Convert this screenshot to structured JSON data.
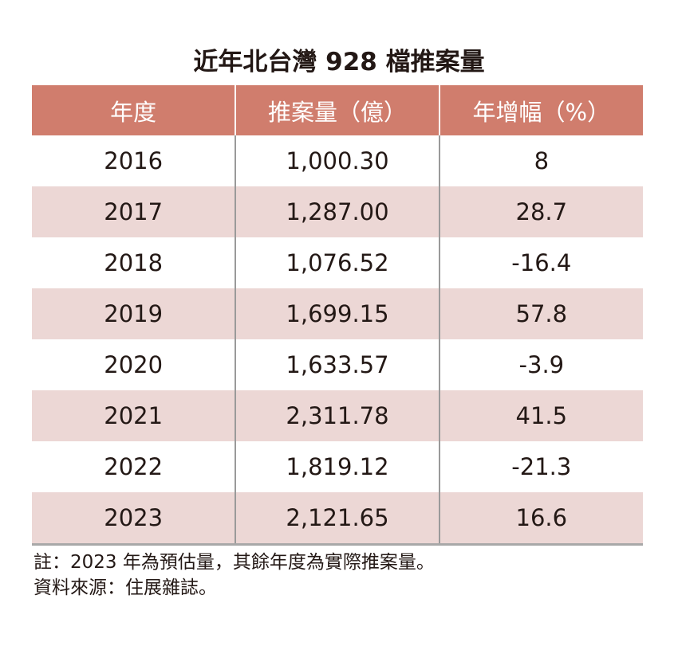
{
  "title": "近年北台灣 928 檔推案量",
  "chart_data": {
    "type": "table",
    "title": "近年北台灣 928 檔推案量",
    "columns": [
      "年度",
      "推案量（億）",
      "年增幅（%）"
    ],
    "rows": [
      [
        "2016",
        "1,000.30",
        "8"
      ],
      [
        "2017",
        "1,287.00",
        "28.7"
      ],
      [
        "2018",
        "1,076.52",
        "-16.4"
      ],
      [
        "2019",
        "1,699.15",
        "57.8"
      ],
      [
        "2020",
        "1,633.57",
        "-3.9"
      ],
      [
        "2021",
        "2,311.78",
        "41.5"
      ],
      [
        "2022",
        "1,819.12",
        "-21.3"
      ],
      [
        "2023",
        "2,121.65",
        "16.6"
      ]
    ],
    "header_color": "#d07d6d",
    "alt_row_color": "#ecd7d5"
  },
  "notes": [
    "註：2023 年為預估量，其餘年度為實際推案量。",
    "資料來源：住展雜誌。"
  ]
}
